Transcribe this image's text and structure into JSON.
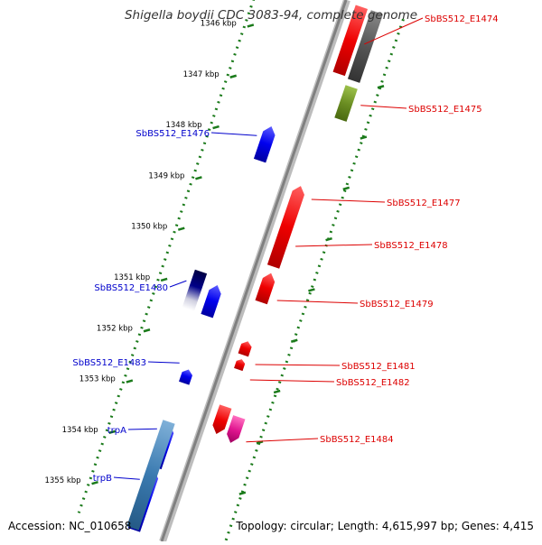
{
  "title": "Shigella boydii CDC 3083-94, complete genome",
  "accession": "Accession: NC_010658",
  "topology": "Topology: circular; Length: 4,615,997 bp; Genes: 4,415",
  "colors": {
    "backbone": "#808080",
    "tick": "#1a7a1a",
    "forward_label": "#0000cc",
    "reverse_label": "#dd0000",
    "gene_red": "#ee0000",
    "gene_blue": "#0000ee",
    "gene_steelblue": "#3a7ab0",
    "gene_navy": "#000066",
    "gene_grey": "#555555",
    "gene_olive": "#6b8e23",
    "gene_magenta": "#e0158f"
  },
  "ticks": [
    "1346 kbp",
    "1347 kbp",
    "1348 kbp",
    "1349 kbp",
    "1350 kbp",
    "1351 kbp",
    "1352 kbp",
    "1353 kbp",
    "1354 kbp",
    "1355 kbp"
  ],
  "genes": [
    {
      "label": "SbBS512_E1474",
      "side": "right",
      "color": "red",
      "lane": "r1",
      "kind": "block"
    },
    {
      "label": "",
      "side": "right",
      "color": "grey",
      "lane": "r2",
      "kind": "block"
    },
    {
      "label": "SbBS512_E1475",
      "side": "right",
      "color": "olive",
      "lane": "r2",
      "kind": "block"
    },
    {
      "label": "SbBS512_E1476",
      "side": "left",
      "color": "blue",
      "lane": "l1",
      "kind": "arrow"
    },
    {
      "label": "SbBS512_E1477",
      "side": "right",
      "color": "red",
      "lane": "r1",
      "kind": "arrow"
    },
    {
      "label": "SbBS512_E1478",
      "side": "right",
      "color": "red",
      "lane": "r1",
      "kind": "arrow"
    },
    {
      "label": "SbBS512_E1479",
      "side": "right",
      "color": "red",
      "lane": "r1",
      "kind": "arrow"
    },
    {
      "label": "SbBS512_E1480",
      "side": "left",
      "color": "navy",
      "lane": "l2",
      "kind": "block"
    },
    {
      "label": "",
      "side": "left",
      "color": "blue",
      "lane": "l1",
      "kind": "arrow"
    },
    {
      "label": "SbBS512_E1481",
      "side": "right",
      "color": "red",
      "lane": "r1",
      "kind": "arrow"
    },
    {
      "label": "SbBS512_E1482",
      "side": "right",
      "color": "red",
      "lane": "r1",
      "kind": "arrow"
    },
    {
      "label": "SbBS512_E1483",
      "side": "left",
      "color": "blue",
      "lane": "l1",
      "kind": "arrow"
    },
    {
      "label": "",
      "side": "right",
      "color": "red",
      "lane": "r1",
      "kind": "arrow"
    },
    {
      "label": "SbBS512_E1484",
      "side": "right",
      "color": "magenta",
      "lane": "r2",
      "kind": "arrow"
    },
    {
      "label": "trpA",
      "side": "left",
      "color": "blue",
      "lane": "l1",
      "kind": "arrow"
    },
    {
      "label": "trpB",
      "side": "left",
      "color": "blue",
      "lane": "l1",
      "kind": "arrow"
    },
    {
      "label": "",
      "side": "left",
      "color": "steelblue",
      "lane": "l2",
      "kind": "block"
    }
  ]
}
